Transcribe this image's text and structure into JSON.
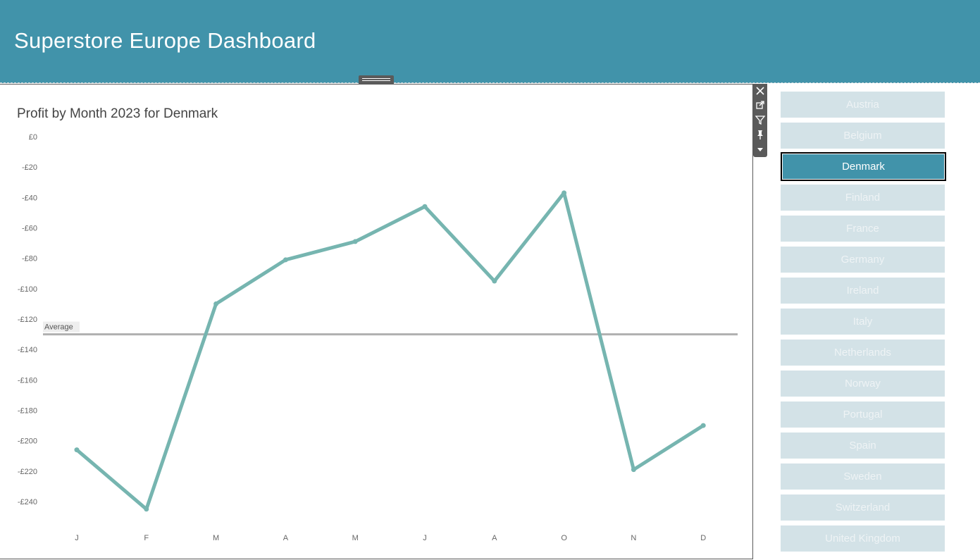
{
  "header": {
    "title": "Superstore Europe Dashboard"
  },
  "toolbar": {
    "icons": [
      "close-icon",
      "external-link-icon",
      "filter-icon",
      "pin-icon",
      "caret-down-icon"
    ]
  },
  "colors": {
    "header_bg": "#4193aa",
    "line": "#76b5b0",
    "average_line": "#b0b0b0",
    "filter_bg": "#d3e2e7",
    "filter_selected_bg": "#4193aa"
  },
  "chart_data": {
    "type": "line",
    "title": "Profit by Month 2023 for Denmark",
    "categories": [
      "J",
      "F",
      "M",
      "A",
      "M",
      "J",
      "A",
      "O",
      "N",
      "D"
    ],
    "series": [
      {
        "values": [
          -206,
          -245,
          -110,
          -81,
          -69,
          -46,
          -95,
          -37,
          -219,
          -190
        ]
      }
    ],
    "reference_line": {
      "label": "Average",
      "value": -130
    },
    "y_ticks": [
      {
        "value": 0,
        "label": "£0"
      },
      {
        "value": -20,
        "label": "-£20"
      },
      {
        "value": -40,
        "label": "-£40"
      },
      {
        "value": -60,
        "label": "-£60"
      },
      {
        "value": -80,
        "label": "-£80"
      },
      {
        "value": -100,
        "label": "-£100"
      },
      {
        "value": -120,
        "label": "-£120"
      },
      {
        "value": -140,
        "label": "-£140"
      },
      {
        "value": -160,
        "label": "-£160"
      },
      {
        "value": -180,
        "label": "-£180"
      },
      {
        "value": -200,
        "label": "-£200"
      },
      {
        "value": -220,
        "label": "-£220"
      },
      {
        "value": -240,
        "label": "-£240"
      }
    ],
    "ylim": [
      -250,
      0
    ],
    "grid": false,
    "legend": "none"
  },
  "country_filter": {
    "items": [
      {
        "label": "Austria",
        "selected": false
      },
      {
        "label": "Belgium",
        "selected": false
      },
      {
        "label": "Denmark",
        "selected": true
      },
      {
        "label": "Finland",
        "selected": false
      },
      {
        "label": "France",
        "selected": false
      },
      {
        "label": "Germany",
        "selected": false
      },
      {
        "label": "Ireland",
        "selected": false
      },
      {
        "label": "Italy",
        "selected": false
      },
      {
        "label": "Netherlands",
        "selected": false
      },
      {
        "label": "Norway",
        "selected": false
      },
      {
        "label": "Portugal",
        "selected": false
      },
      {
        "label": "Spain",
        "selected": false
      },
      {
        "label": "Sweden",
        "selected": false
      },
      {
        "label": "Switzerland",
        "selected": false
      },
      {
        "label": "United Kingdom",
        "selected": false
      }
    ]
  }
}
